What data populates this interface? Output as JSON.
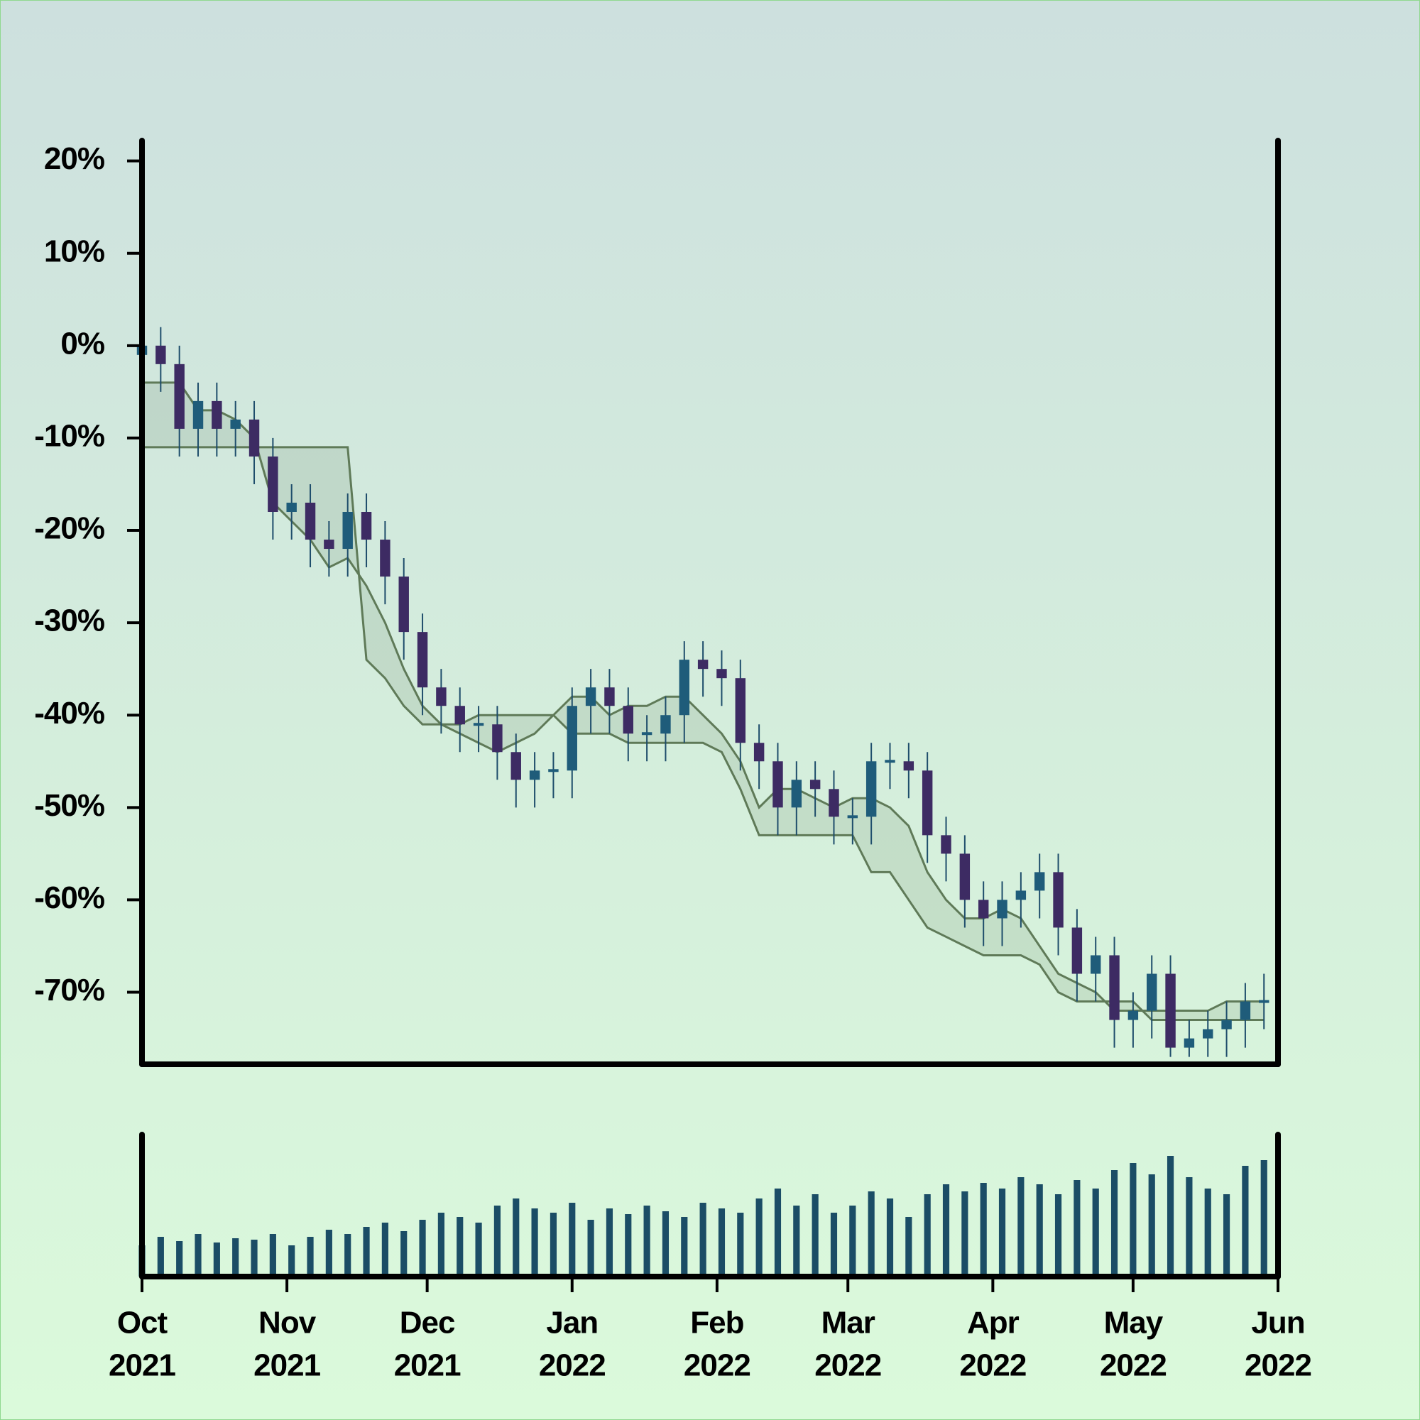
{
  "chart_data": {
    "type": "candlestick",
    "x": [
      "2021-10-01",
      "2021-10-05",
      "2021-10-09",
      "2021-10-13",
      "2021-10-17",
      "2021-10-21",
      "2021-10-25",
      "2021-10-29",
      "2021-11-02",
      "2021-11-06",
      "2021-11-10",
      "2021-11-14",
      "2021-11-18",
      "2021-11-22",
      "2021-11-26",
      "2021-11-30",
      "2021-12-04",
      "2021-12-08",
      "2021-12-12",
      "2021-12-16",
      "2021-12-20",
      "2021-12-24",
      "2021-12-28",
      "2022-01-01",
      "2022-01-05",
      "2022-01-09",
      "2022-01-13",
      "2022-01-17",
      "2022-01-21",
      "2022-01-25",
      "2022-01-29",
      "2022-02-02",
      "2022-02-06",
      "2022-02-10",
      "2022-02-14",
      "2022-02-18",
      "2022-02-22",
      "2022-02-26",
      "2022-03-02",
      "2022-03-06",
      "2022-03-10",
      "2022-03-14",
      "2022-03-18",
      "2022-03-22",
      "2022-03-26",
      "2022-03-30",
      "2022-04-03",
      "2022-04-07",
      "2022-04-11",
      "2022-04-15",
      "2022-04-19",
      "2022-04-23",
      "2022-04-27",
      "2022-05-01",
      "2022-05-05",
      "2022-05-09",
      "2022-05-13",
      "2022-05-17",
      "2022-05-21",
      "2022-05-25",
      "2022-05-29"
    ],
    "open": [
      -1,
      0,
      -2,
      -9,
      -6,
      -9,
      -8,
      -12,
      -18,
      -17,
      -21,
      -22,
      -18,
      -21,
      -25,
      -31,
      -37,
      -39,
      -41,
      -41,
      -44,
      -47,
      -46,
      -46,
      -39,
      -37,
      -39,
      -42,
      -42,
      -40,
      -34,
      -35,
      -36,
      -43,
      -45,
      -50,
      -47,
      -48,
      -51,
      -51,
      -45,
      -45,
      -46,
      -53,
      -55,
      -60,
      -62,
      -60,
      -59,
      -57,
      -63,
      -68,
      -66,
      -73,
      -72,
      -68,
      -76,
      -75,
      -74,
      -73,
      -71
    ],
    "high": [
      2,
      2,
      0,
      -4,
      -4,
      -6,
      -6,
      -10,
      -15,
      -15,
      -19,
      -16,
      -16,
      -19,
      -23,
      -29,
      -35,
      -37,
      -39,
      -39,
      -42,
      -44,
      -44,
      -37,
      -35,
      -35,
      -37,
      -40,
      -38,
      -32,
      -32,
      -33,
      -34,
      -41,
      -43,
      -45,
      -45,
      -46,
      -49,
      -43,
      -43,
      -43,
      -44,
      -51,
      -53,
      -58,
      -58,
      -57,
      -55,
      -55,
      -61,
      -64,
      -64,
      -70,
      -66,
      -66,
      -73,
      -72,
      -71,
      -69,
      -68
    ],
    "low": [
      -4,
      -5,
      -12,
      -12,
      -12,
      -12,
      -15,
      -21,
      -21,
      -24,
      -25,
      -25,
      -24,
      -28,
      -34,
      -40,
      -42,
      -44,
      -44,
      -47,
      -50,
      -50,
      -49,
      -49,
      -42,
      -42,
      -45,
      -45,
      -45,
      -43,
      -38,
      -39,
      -46,
      -48,
      -53,
      -53,
      -51,
      -54,
      -54,
      -54,
      -48,
      -49,
      -56,
      -58,
      -63,
      -65,
      -65,
      -63,
      -62,
      -66,
      -71,
      -71,
      -76,
      -76,
      -75,
      -77,
      -77,
      -77,
      -77,
      -76,
      -74
    ],
    "close": [
      0,
      -2,
      -9,
      -6,
      -9,
      -8,
      -12,
      -18,
      -17,
      -21,
      -22,
      -18,
      -21,
      -25,
      -31,
      -37,
      -39,
      -41,
      -41,
      -44,
      -47,
      -46,
      -46,
      -39,
      -37,
      -39,
      -42,
      -42,
      -40,
      -34,
      -35,
      -36,
      -43,
      -45,
      -50,
      -47,
      -48,
      -51,
      -51,
      -45,
      -45,
      -46,
      -53,
      -55,
      -60,
      -62,
      -60,
      -59,
      -57,
      -63,
      -68,
      -66,
      -73,
      -72,
      -68,
      -76,
      -75,
      -74,
      -73,
      -71,
      -71
    ],
    "up_color": "#1f5c7a",
    "down_color": "#3d2b63",
    "wick_color": "#1e4d6b",
    "bands": [
      {
        "color": "#5f7a58",
        "values": [
          -4,
          -4,
          -4,
          -7,
          -7,
          -8,
          -10,
          -17,
          -19,
          -21,
          -24,
          -23,
          -26,
          -30,
          -35,
          -39,
          -41,
          -42,
          -43,
          -44,
          -43,
          -42,
          -40,
          -38,
          -38,
          -40,
          -39,
          -39,
          -38,
          -38,
          -40,
          -42,
          -45,
          -50,
          -48,
          -48,
          -49,
          -50,
          -49,
          -49,
          -50,
          -52,
          -57,
          -60,
          -62,
          -62,
          -61,
          -62,
          -65,
          -68,
          -69,
          -70,
          -72,
          -72,
          -72,
          -72,
          -72,
          -72,
          -71,
          -71,
          -71
        ]
      },
      {
        "color": "#5f7a58",
        "values": [
          -11,
          -11,
          -11,
          -11,
          -11,
          -11,
          -11,
          -11,
          -11,
          -11,
          -11,
          -11,
          -34,
          -36,
          -39,
          -41,
          -41,
          -41,
          -40,
          -40,
          -40,
          -40,
          -40,
          -42,
          -42,
          -42,
          -43,
          -43,
          -43,
          -43,
          -43,
          -44,
          -48,
          -53,
          -53,
          -53,
          -53,
          -53,
          -53,
          -57,
          -57,
          -60,
          -63,
          -64,
          -65,
          -66,
          -66,
          -66,
          -67,
          -70,
          -71,
          -71,
          -71,
          -71,
          -73,
          -73,
          -73,
          -73,
          -73,
          -73,
          -73
        ]
      }
    ],
    "band_fill": "#5f7a58",
    "volume": {
      "color": "#1b4d66",
      "ylim": [
        0,
        100
      ],
      "values": [
        22,
        28,
        25,
        30,
        24,
        27,
        26,
        30,
        22,
        28,
        33,
        30,
        35,
        38,
        32,
        40,
        45,
        42,
        38,
        50,
        55,
        48,
        45,
        52,
        40,
        48,
        44,
        50,
        46,
        42,
        52,
        48,
        45,
        55,
        62,
        50,
        58,
        45,
        50,
        60,
        55,
        42,
        58,
        65,
        60,
        66,
        62,
        70,
        65,
        58,
        68,
        62,
        75,
        80,
        72,
        85,
        70,
        62,
        58,
        78,
        82
      ]
    },
    "xlim": [
      "2021-10-01",
      "2022-06-01"
    ],
    "ylim": [
      -77.8,
      22.2
    ],
    "yticks": [
      {
        "value": 20,
        "label": "20%"
      },
      {
        "value": 10,
        "label": "10%"
      },
      {
        "value": 0,
        "label": "0%"
      },
      {
        "value": -10,
        "label": "-10%"
      },
      {
        "value": -20,
        "label": "-20%"
      },
      {
        "value": -30,
        "label": "-30%"
      },
      {
        "value": -40,
        "label": "-40%"
      },
      {
        "value": -50,
        "label": "-50%"
      },
      {
        "value": -60,
        "label": "-60%"
      },
      {
        "value": -70,
        "label": "-70%"
      }
    ],
    "xticks": [
      {
        "value": "2021-10-01",
        "label": [
          "Oct",
          "2021"
        ]
      },
      {
        "value": "2021-11-01",
        "label": [
          "Nov",
          "2021"
        ]
      },
      {
        "value": "2021-12-01",
        "label": [
          "Dec",
          "2021"
        ]
      },
      {
        "value": "2022-01-01",
        "label": [
          "Jan",
          "2022"
        ]
      },
      {
        "value": "2022-02-01",
        "label": [
          "Feb",
          "2022"
        ]
      },
      {
        "value": "2022-03-01",
        "label": [
          "Mar",
          "2022"
        ]
      },
      {
        "value": "2022-04-01",
        "label": [
          "Apr",
          "2022"
        ]
      },
      {
        "value": "2022-05-01",
        "label": [
          "May",
          "2022"
        ]
      },
      {
        "value": "2022-06-01",
        "label": [
          "Jun",
          "2022"
        ]
      }
    ]
  }
}
